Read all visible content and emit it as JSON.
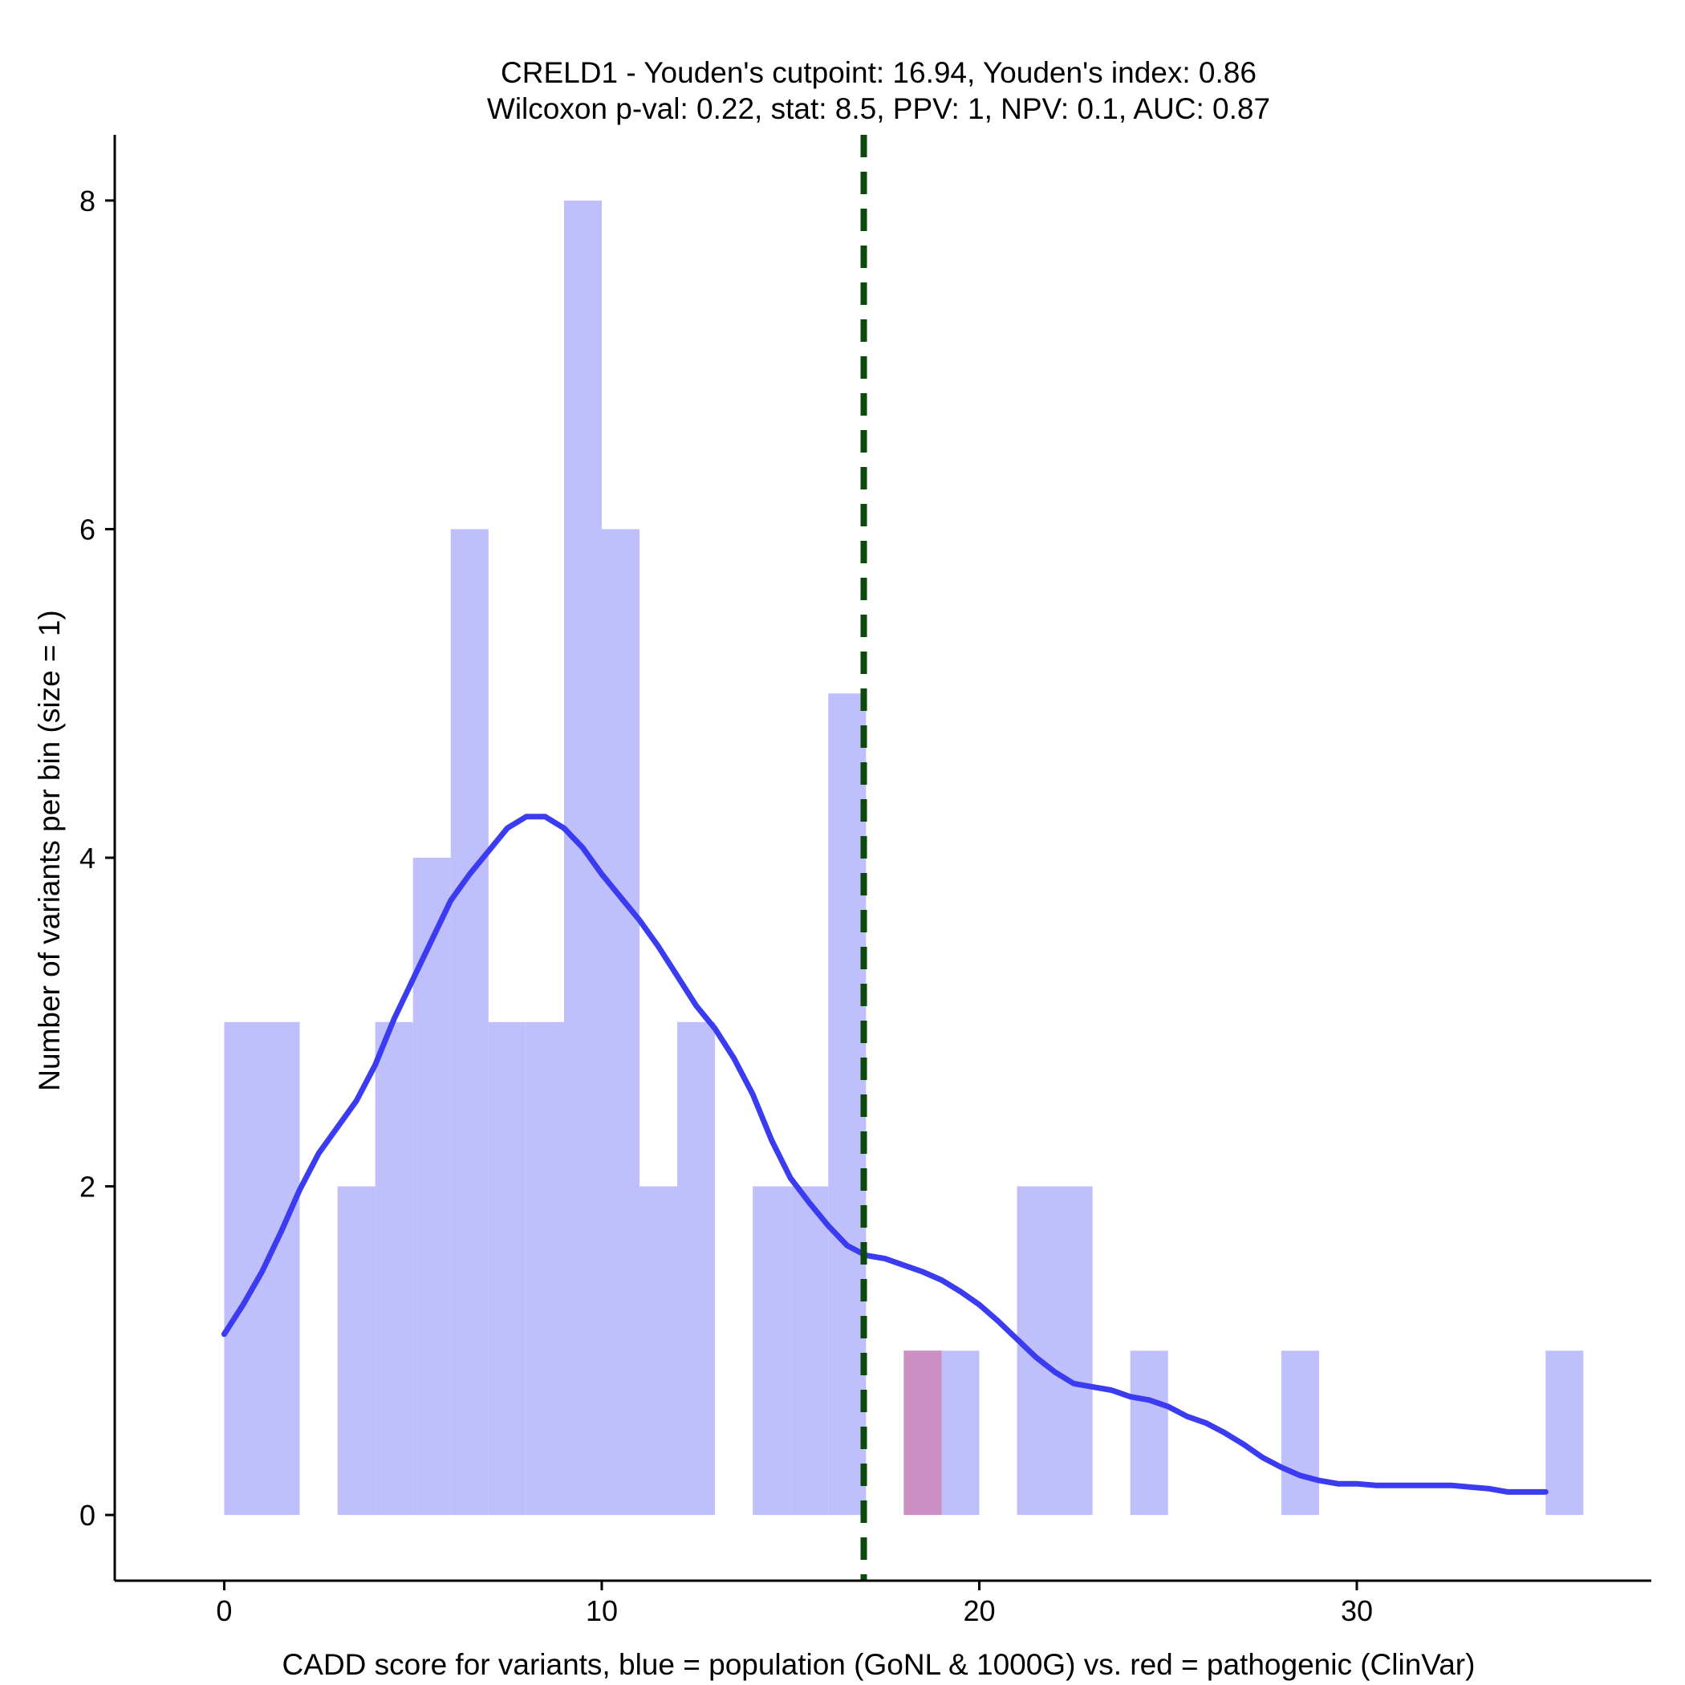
{
  "chart_data": {
    "type": "bar",
    "title_line1": "CRELD1 - Youden's cutpoint: 16.94, Youden's index: 0.86",
    "title_line2": "Wilcoxon p-val: 0.22, stat: 8.5, PPV: 1, NPV: 0.1, AUC: 0.87",
    "xlabel": "CADD score for variants, blue = population (GoNL & 1000G) vs. red = pathogenic (ClinVar)",
    "ylabel": "Number of variants per bin (size = 1)",
    "xlim": [
      -2.9,
      37.8
    ],
    "ylim": [
      -0.4,
      8.4
    ],
    "x_ticks": [
      0,
      10,
      20,
      30
    ],
    "y_ticks": [
      0,
      2,
      4,
      6,
      8
    ],
    "bin_size": 1,
    "grid": false,
    "legend": "none",
    "cutpoint": 16.94,
    "colors": {
      "population": "#bfbffb",
      "pathogenic": "#cc8fc3",
      "density": "#3b3bf2",
      "cutpoint": "#0d4a0d"
    },
    "series": [
      {
        "name": "population",
        "bins": [
          {
            "x0": 0,
            "x1": 1,
            "count": 3
          },
          {
            "x0": 1,
            "x1": 2,
            "count": 3
          },
          {
            "x0": 3,
            "x1": 4,
            "count": 2
          },
          {
            "x0": 4,
            "x1": 5,
            "count": 3
          },
          {
            "x0": 5,
            "x1": 6,
            "count": 4
          },
          {
            "x0": 6,
            "x1": 7,
            "count": 6
          },
          {
            "x0": 7,
            "x1": 8,
            "count": 3
          },
          {
            "x0": 8,
            "x1": 9,
            "count": 3
          },
          {
            "x0": 9,
            "x1": 10,
            "count": 8
          },
          {
            "x0": 10,
            "x1": 11,
            "count": 6
          },
          {
            "x0": 11,
            "x1": 12,
            "count": 2
          },
          {
            "x0": 12,
            "x1": 13,
            "count": 3
          },
          {
            "x0": 14,
            "x1": 15,
            "count": 2
          },
          {
            "x0": 15,
            "x1": 16,
            "count": 2
          },
          {
            "x0": 16,
            "x1": 17,
            "count": 5
          },
          {
            "x0": 18,
            "x1": 19,
            "count": 1
          },
          {
            "x0": 19,
            "x1": 20,
            "count": 1
          },
          {
            "x0": 21,
            "x1": 22,
            "count": 2
          },
          {
            "x0": 22,
            "x1": 23,
            "count": 2
          },
          {
            "x0": 24,
            "x1": 25,
            "count": 1
          },
          {
            "x0": 28,
            "x1": 29,
            "count": 1
          },
          {
            "x0": 35,
            "x1": 36,
            "count": 1
          }
        ]
      },
      {
        "name": "pathogenic",
        "bins": [
          {
            "x0": 18,
            "x1": 19,
            "count": 1
          }
        ]
      }
    ],
    "density_curve": [
      [
        0.0,
        1.1
      ],
      [
        0.5,
        1.28
      ],
      [
        1.0,
        1.48
      ],
      [
        1.5,
        1.72
      ],
      [
        2.0,
        1.98
      ],
      [
        2.5,
        2.2
      ],
      [
        3.0,
        2.36
      ],
      [
        3.5,
        2.52
      ],
      [
        4.0,
        2.74
      ],
      [
        4.5,
        3.02
      ],
      [
        5.0,
        3.26
      ],
      [
        5.5,
        3.5
      ],
      [
        6.0,
        3.74
      ],
      [
        6.5,
        3.9
      ],
      [
        7.0,
        4.04
      ],
      [
        7.5,
        4.18
      ],
      [
        8.0,
        4.25
      ],
      [
        8.5,
        4.25
      ],
      [
        9.0,
        4.18
      ],
      [
        9.5,
        4.06
      ],
      [
        10.0,
        3.9
      ],
      [
        10.5,
        3.76
      ],
      [
        11.0,
        3.62
      ],
      [
        11.5,
        3.46
      ],
      [
        12.0,
        3.28
      ],
      [
        12.5,
        3.1
      ],
      [
        13.0,
        2.96
      ],
      [
        13.5,
        2.78
      ],
      [
        14.0,
        2.56
      ],
      [
        14.5,
        2.28
      ],
      [
        15.0,
        2.05
      ],
      [
        15.5,
        1.9
      ],
      [
        16.0,
        1.76
      ],
      [
        16.5,
        1.64
      ],
      [
        17.0,
        1.58
      ],
      [
        17.5,
        1.56
      ],
      [
        18.0,
        1.52
      ],
      [
        18.5,
        1.48
      ],
      [
        19.0,
        1.43
      ],
      [
        19.5,
        1.36
      ],
      [
        20.0,
        1.28
      ],
      [
        20.5,
        1.18
      ],
      [
        21.0,
        1.07
      ],
      [
        21.5,
        0.96
      ],
      [
        22.0,
        0.87
      ],
      [
        22.5,
        0.8
      ],
      [
        23.0,
        0.78
      ],
      [
        23.5,
        0.76
      ],
      [
        24.0,
        0.72
      ],
      [
        24.5,
        0.7
      ],
      [
        25.0,
        0.66
      ],
      [
        25.5,
        0.6
      ],
      [
        26.0,
        0.56
      ],
      [
        26.5,
        0.5
      ],
      [
        27.0,
        0.43
      ],
      [
        27.5,
        0.35
      ],
      [
        28.0,
        0.29
      ],
      [
        28.5,
        0.24
      ],
      [
        29.0,
        0.21
      ],
      [
        29.5,
        0.19
      ],
      [
        30.0,
        0.19
      ],
      [
        30.5,
        0.18
      ],
      [
        31.0,
        0.18
      ],
      [
        31.5,
        0.18
      ],
      [
        32.0,
        0.18
      ],
      [
        32.5,
        0.18
      ],
      [
        33.0,
        0.17
      ],
      [
        33.5,
        0.16
      ],
      [
        34.0,
        0.14
      ],
      [
        34.5,
        0.14
      ],
      [
        35.0,
        0.14
      ]
    ]
  }
}
